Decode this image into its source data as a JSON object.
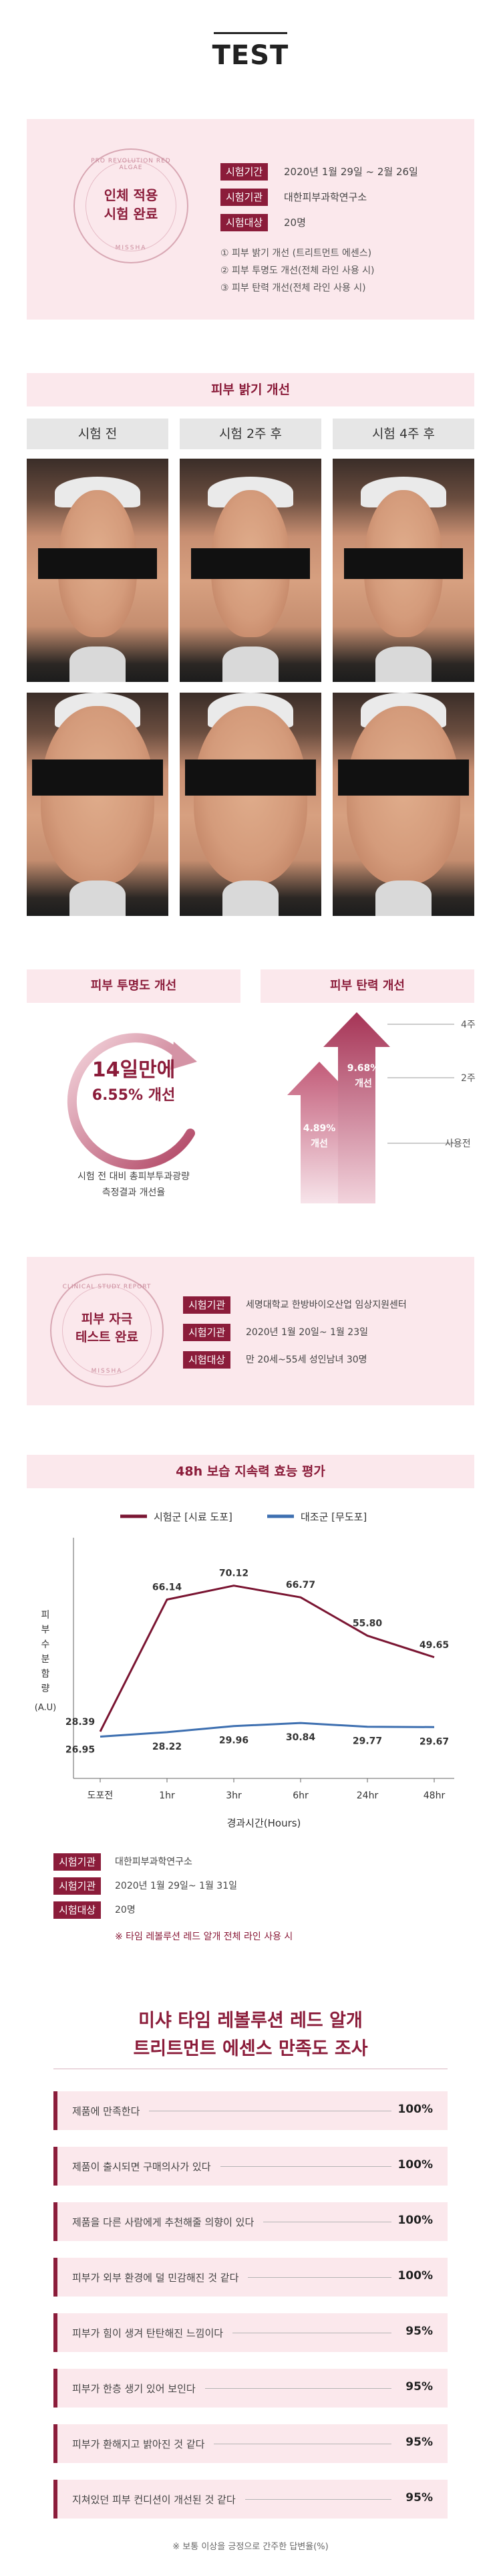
{
  "header": {
    "title": "TEST"
  },
  "test1": {
    "seal_text": "인체 적용\n시험 완료",
    "seal_ring_top": "PRO REVOLUTION RED ALGAE",
    "seal_ring_bottom": "MISSHA",
    "rows": [
      {
        "tag": "시험기간",
        "value": "2020년 1월 29일 ~ 2월 26일"
      },
      {
        "tag": "시험기관",
        "value": "대한피부과학연구소"
      },
      {
        "tag": "시험대상",
        "value": "20명"
      }
    ],
    "notes": [
      "① 피부 밝기 개선 (트리트먼트 에센스)",
      "② 피부 투명도 개선(전체 라인 사용 시)",
      "③ 피부 탄력 개선(전체 라인 사용 시)"
    ]
  },
  "brightness": {
    "title": "피부 밝기 개선",
    "columns": [
      "시험 전",
      "시험 2주 후",
      "시험 4주 후"
    ]
  },
  "clarity": {
    "title": "피부 투명도 개선",
    "big": "14일만에",
    "sub": "6.55% 개선",
    "caption": "시험 전 대비 총피부투과광량\n측정결과 개선율"
  },
  "elasticity": {
    "title": "피부 탄력 개선",
    "arrow1_value": "4.89%",
    "arrow1_label": "개선",
    "arrow2_value": "9.68%",
    "arrow2_label": "개선",
    "label_4w": "4주",
    "label_2w": "2주",
    "label_before": "사용전"
  },
  "test2": {
    "seal_text": "피부 자극\n테스트 완료",
    "seal_ring_top": "CLINICAL STUDY REPORT",
    "seal_ring_bottom": "MISSHA",
    "rows": [
      {
        "tag": "시험기관",
        "value": "세명대학교 한방바이오산업 임상지원센터"
      },
      {
        "tag": "시험기관",
        "value": "2020년 1월 20일~ 1월 23일"
      },
      {
        "tag": "시험대상",
        "value": "만 20세~55세 성인남녀 30명"
      }
    ]
  },
  "moisture": {
    "title": "48h 보습 지속력 효능 평가",
    "meta": [
      {
        "tag": "시험기관",
        "value": "대한피부과학연구소"
      },
      {
        "tag": "시험기관",
        "value": "2020년 1월 29일~ 1월 31일"
      },
      {
        "tag": "시험대상",
        "value": "20명"
      }
    ],
    "footnote": "※ 타임 레볼루션 레드 알개 전체 라인 사용 시"
  },
  "chart_data": {
    "type": "line",
    "categories": [
      "도포전",
      "1hr",
      "3hr",
      "6hr",
      "24hr",
      "48hr"
    ],
    "series": [
      {
        "name": "시험군 [시료 도포]",
        "values": [
          28.39,
          66.14,
          70.12,
          66.77,
          55.8,
          49.65
        ],
        "color": "#7a1532"
      },
      {
        "name": "대조군 [무도포]",
        "values": [
          26.95,
          28.22,
          29.96,
          30.84,
          29.77,
          29.67
        ],
        "color": "#3d6fb0"
      }
    ],
    "ylabel": "피부수분함량 (A.U)",
    "xlabel": "경과시간(Hours)",
    "ylim": [
      15,
      80
    ],
    "legend": "top"
  },
  "survey": {
    "title_line1": "미샤 타임 레볼루션 레드 알개",
    "title_line2": "트리트먼트 에센스 만족도 조사",
    "items": [
      {
        "text": "제품에 만족한다",
        "pct": "100%"
      },
      {
        "text": "제품이 출시되면 구매의사가 있다",
        "pct": "100%"
      },
      {
        "text": "제품을 다른 사람에게 추천해줄 의향이 있다",
        "pct": "100%"
      },
      {
        "text": "피부가 외부 환경에 덜 민감해진 것 같다",
        "pct": "100%"
      },
      {
        "text": "피부가 힘이 생겨 탄탄해진 느낌이다",
        "pct": "95%"
      },
      {
        "text": "피부가 한층 생기 있어 보인다",
        "pct": "95%"
      },
      {
        "text": "피부가 환해지고 밝아진 것 같다",
        "pct": "95%"
      },
      {
        "text": "지쳐있던 피부 컨디션이 개선된 것 같다",
        "pct": "95%"
      }
    ],
    "footnote": "※ 보통 이상을 긍정으로 간주한 답변율(%)"
  }
}
